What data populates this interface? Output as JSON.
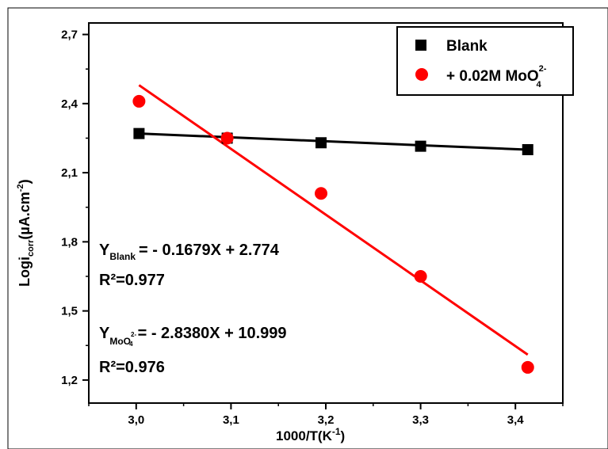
{
  "chart_data": {
    "type": "scatter",
    "xlabel_main": "1000/T(K",
    "xlabel_sup": "-1",
    "xlabel_end": ")",
    "ylabel_main": "Logi",
    "ylabel_sub": "corr",
    "ylabel_units": "(µA.cm",
    "ylabel_sup": "-2",
    "ylabel_end": ")",
    "xlim": [
      2.95,
      3.45
    ],
    "ylim": [
      1.1,
      2.75
    ],
    "x_ticks": [
      3.0,
      3.1,
      3.2,
      3.3,
      3.4
    ],
    "x_tick_labels": [
      "3,0",
      "3,1",
      "3,2",
      "3,3",
      "3,4"
    ],
    "y_ticks": [
      1.2,
      1.5,
      1.8,
      2.1,
      2.4,
      2.7
    ],
    "y_tick_labels": [
      "1,2",
      "1,5",
      "1,8",
      "2,1",
      "2,4",
      "2,7"
    ],
    "series": [
      {
        "name": "Blank",
        "marker": "square",
        "color": "#000000",
        "x": [
          3.003,
          3.096,
          3.195,
          3.3,
          3.413
        ],
        "y": [
          2.27,
          2.25,
          2.23,
          2.215,
          2.2
        ],
        "fit": {
          "x": [
            3.003,
            3.413
          ],
          "y": [
            2.27,
            2.2
          ]
        }
      },
      {
        "name_prefix": "+ 0.02M MoO",
        "name_sub": "4",
        "name_sup": "2-",
        "marker": "circle",
        "color": "#ff0000",
        "x": [
          3.003,
          3.096,
          3.195,
          3.3,
          3.413
        ],
        "y": [
          2.41,
          2.25,
          2.01,
          1.65,
          1.255
        ],
        "fit": {
          "x": [
            3.003,
            3.413
          ],
          "y": [
            2.48,
            1.31
          ]
        }
      }
    ],
    "annotations": {
      "eq_blank_Y": "Y",
      "eq_blank_sub": "Blank",
      "eq_blank_rest": "= - 0.1679X + 2.774",
      "r2_blank": "R²=0.977",
      "eq_moo_Y": "Y",
      "eq_moo_sub": "MoO",
      "eq_moo_subsub": "4",
      "eq_moo_subsup": "2-",
      "eq_moo_rest": "= - 2.8380X + 10.999",
      "r2_moo": "R²=0.976"
    },
    "legend_position": "top-right",
    "grid": false
  }
}
